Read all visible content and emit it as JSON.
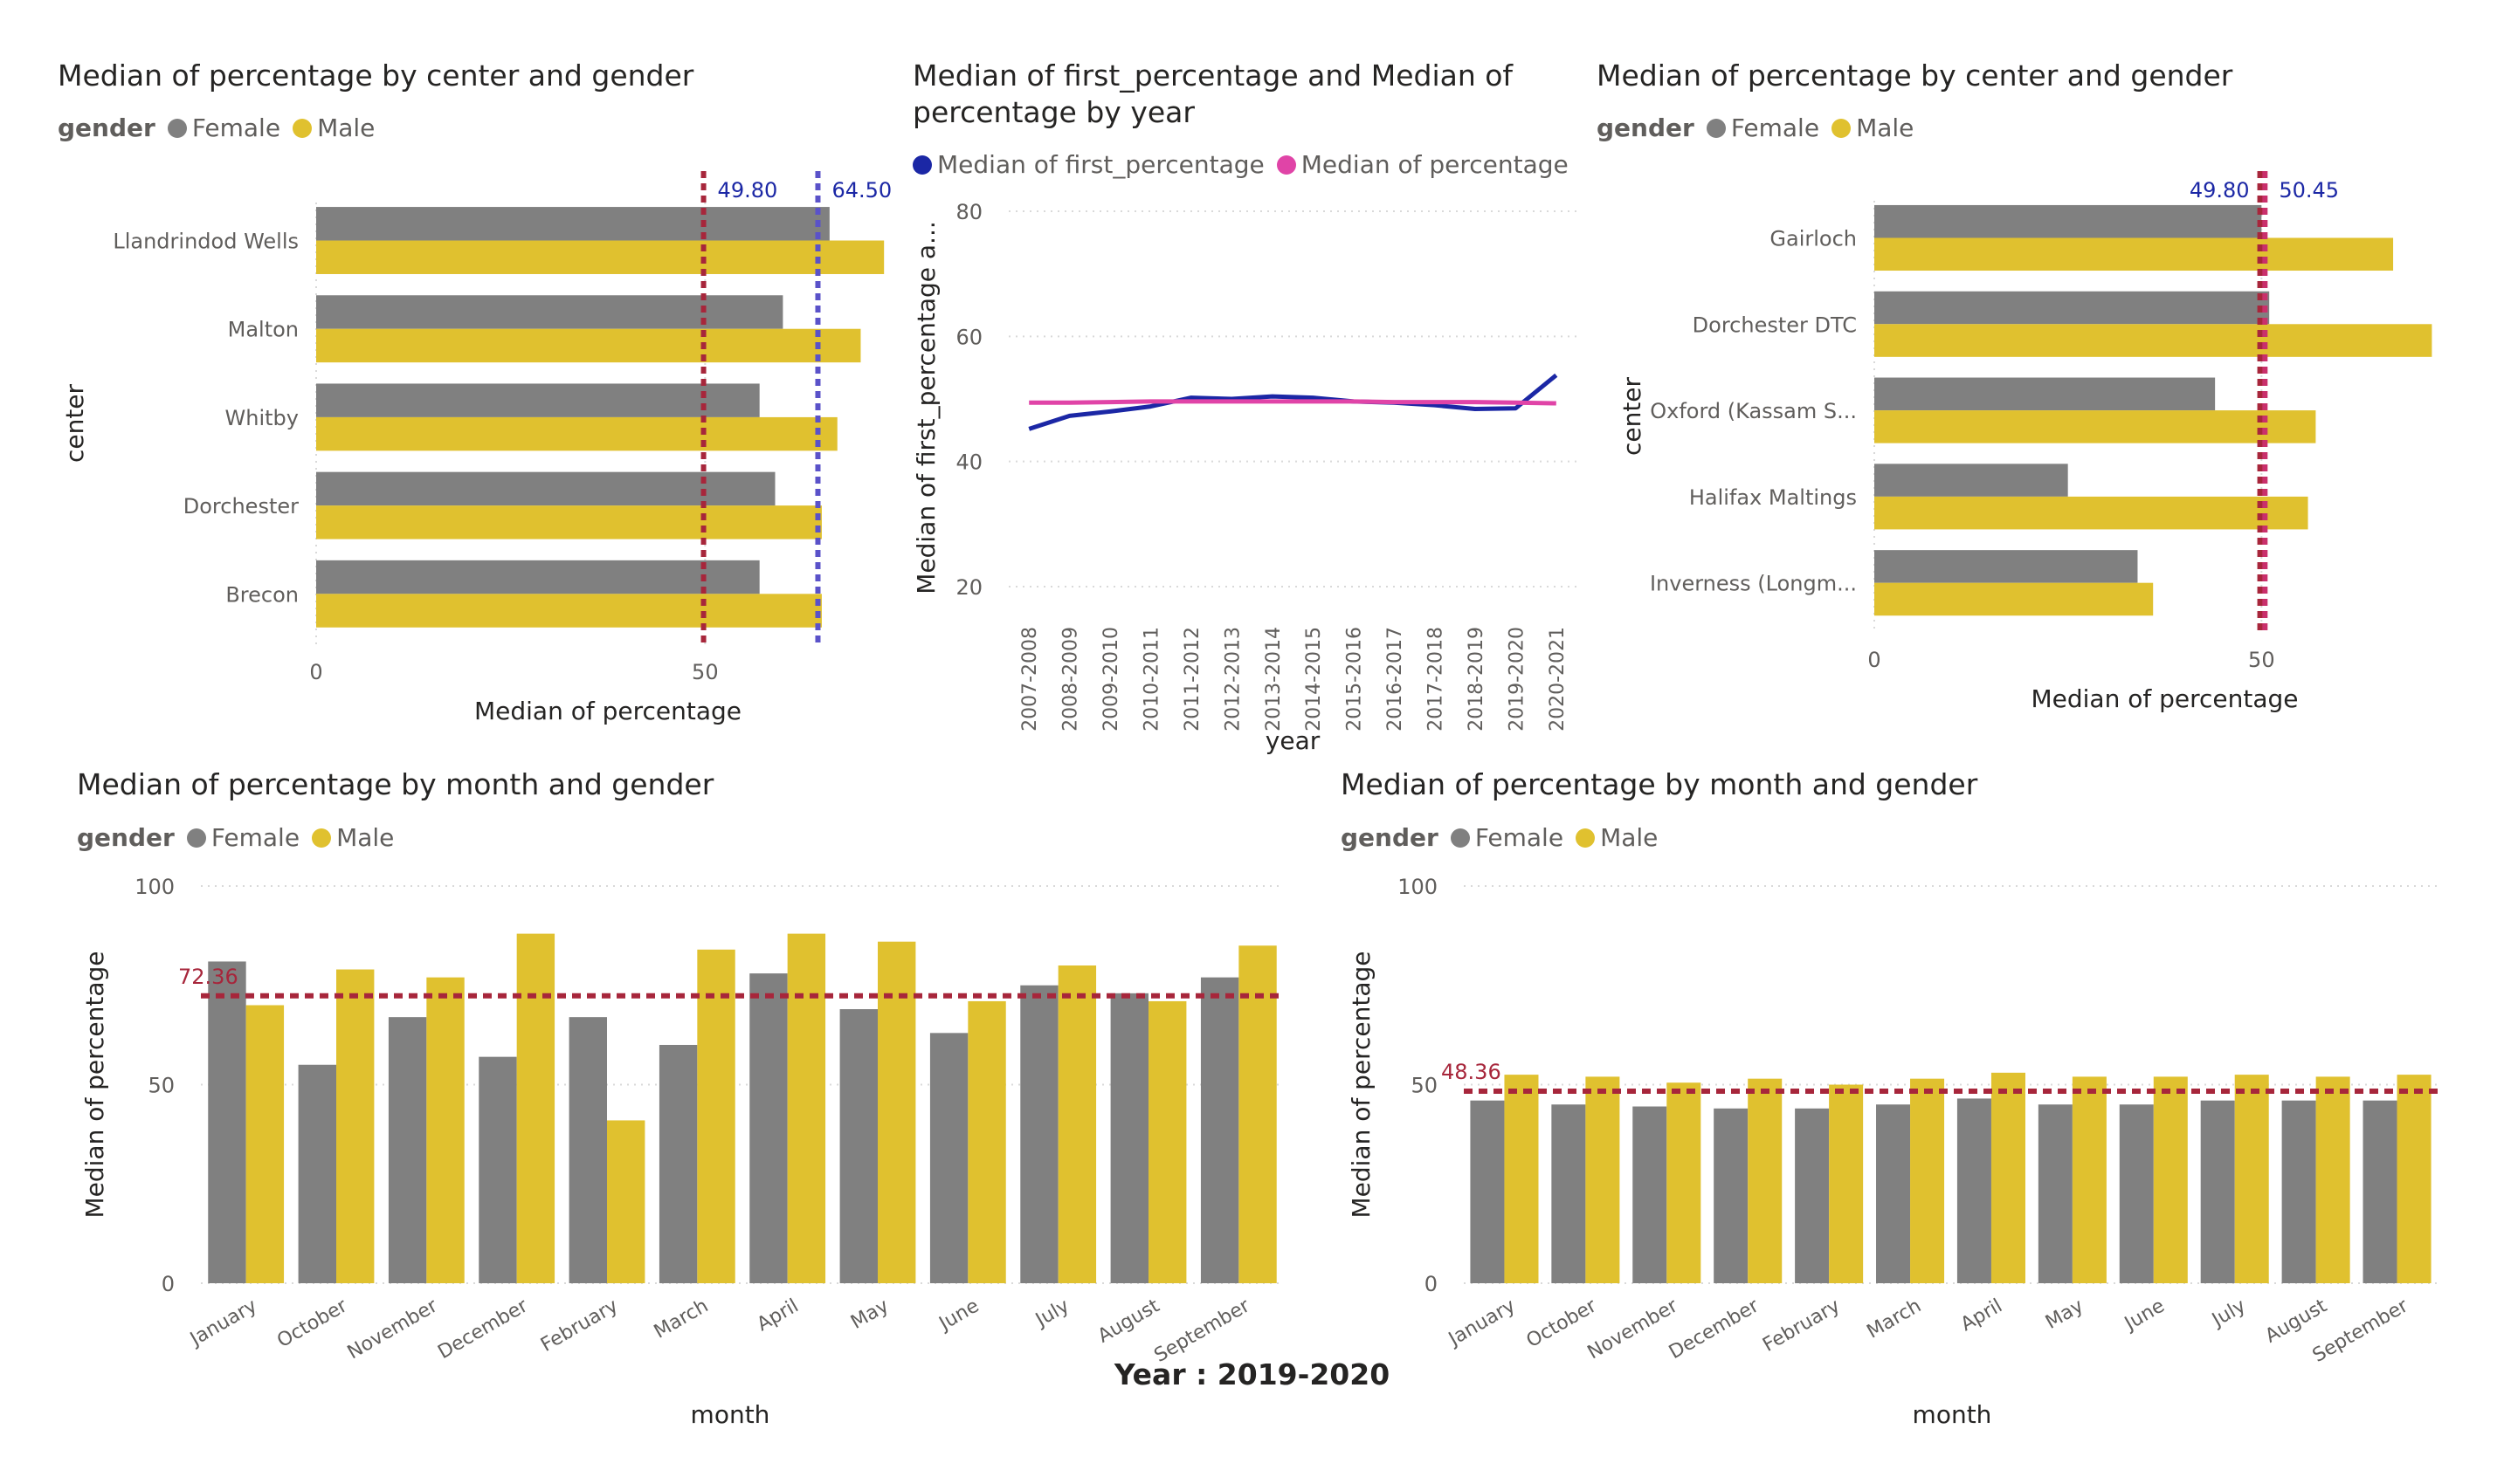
{
  "colors": {
    "female": "#808080",
    "male": "#E0C12F",
    "first_pct_line": "#1b27a5",
    "pct_line": "#e044a7",
    "ref_red": "#a7263b",
    "ref_blue": "#5a52c9",
    "ref_pink": "#c9306b"
  },
  "legend": {
    "title": "gender",
    "female": "Female",
    "male": "Male"
  },
  "footer": {
    "text": "Year : 2019-2020"
  },
  "chart_data": [
    {
      "id": "center_left",
      "type": "bar",
      "orientation": "horizontal",
      "title": "Median of percentage by center and gender",
      "xlabel": "Median of percentage",
      "ylabel": "center",
      "categories": [
        "Llandrindod Wells",
        "Malton",
        "Whitby",
        "Dorchester",
        "Brecon"
      ],
      "series": [
        {
          "name": "Female",
          "values": [
            66,
            60,
            57,
            59,
            57
          ]
        },
        {
          "name": "Male",
          "values": [
            73,
            70,
            67,
            65,
            65
          ]
        }
      ],
      "xlim": [
        0,
        75
      ],
      "xticks": [
        0,
        50
      ],
      "reference_lines": [
        {
          "value": 49.8,
          "label": "49.80",
          "color": "#a7263b"
        },
        {
          "value": 64.5,
          "label": "64.50",
          "color": "#5a52c9"
        }
      ],
      "legend_position": "top-left"
    },
    {
      "id": "year_line",
      "type": "line",
      "title": "Median of first_percentage and Median of percentage by year",
      "title_lines": [
        "Median of first_percentage and Median of",
        "percentage by year"
      ],
      "xlabel": "year",
      "ylabel": "Median of first_percentage a...",
      "x": [
        "2007-2008",
        "2008-2009",
        "2009-2010",
        "2010-2011",
        "2011-2012",
        "2012-2013",
        "2013-2014",
        "2014-2015",
        "2015-2016",
        "2016-2017",
        "2017-2018",
        "2018-2019",
        "2019-2020",
        "2020-2021"
      ],
      "series": [
        {
          "name": "Median of first_percentage",
          "values": [
            45.2,
            47.3,
            48.0,
            48.8,
            50.2,
            50.0,
            50.4,
            50.2,
            49.6,
            49.4,
            49.0,
            48.4,
            48.5,
            53.8
          ]
        },
        {
          "name": "Median of percentage",
          "values": [
            49.4,
            49.4,
            49.5,
            49.6,
            49.6,
            49.6,
            49.6,
            49.6,
            49.6,
            49.5,
            49.5,
            49.5,
            49.4,
            49.3
          ]
        }
      ],
      "ylim": [
        20,
        80
      ],
      "yticks": [
        20,
        40,
        60,
        80
      ],
      "grid": true,
      "legend_position": "top"
    },
    {
      "id": "center_right",
      "type": "bar",
      "orientation": "horizontal",
      "title": "Median of percentage by center and gender",
      "xlabel": "Median of percentage",
      "ylabel": "center",
      "categories": [
        "Gairloch",
        "Dorchester DTC",
        "Oxford (Kassam S...",
        "Halifax Maltings",
        "Inverness (Longm..."
      ],
      "series": [
        {
          "name": "Female",
          "values": [
            50,
            51,
            44,
            25,
            34
          ]
        },
        {
          "name": "Male",
          "values": [
            67,
            72,
            57,
            56,
            36
          ]
        }
      ],
      "xlim": [
        0,
        75
      ],
      "xticks": [
        0,
        50
      ],
      "reference_lines": [
        {
          "value": 49.8,
          "label": "49.80",
          "color": "#a7263b"
        },
        {
          "value": 50.45,
          "label": "50.45",
          "color": "#c9306b"
        }
      ],
      "legend_position": "top-left"
    },
    {
      "id": "month_left",
      "type": "bar",
      "orientation": "vertical",
      "title": "Median of percentage by month and gender",
      "xlabel": "month",
      "ylabel": "Median of percentage",
      "categories": [
        "January",
        "October",
        "November",
        "December",
        "February",
        "March",
        "April",
        "May",
        "June",
        "July",
        "August",
        "September"
      ],
      "series": [
        {
          "name": "Female",
          "values": [
            81,
            55,
            67,
            57,
            67,
            60,
            78,
            69,
            63,
            75,
            73,
            77
          ]
        },
        {
          "name": "Male",
          "values": [
            70,
            79,
            77,
            88,
            41,
            84,
            88,
            86,
            71,
            80,
            71,
            85
          ]
        }
      ],
      "ylim": [
        0,
        100
      ],
      "yticks": [
        0,
        50,
        100
      ],
      "reference_lines": [
        {
          "value": 72.36,
          "label": "72.36",
          "color": "#a7263b"
        }
      ],
      "grid": true,
      "legend_position": "top-left"
    },
    {
      "id": "month_right",
      "type": "bar",
      "orientation": "vertical",
      "title": "Median of percentage by month and gender",
      "xlabel": "month",
      "ylabel": "Median of percentage",
      "categories": [
        "January",
        "October",
        "November",
        "December",
        "February",
        "March",
        "April",
        "May",
        "June",
        "July",
        "August",
        "September"
      ],
      "series": [
        {
          "name": "Female",
          "values": [
            46,
            45,
            44.5,
            44,
            44,
            45,
            46.5,
            45,
            45,
            46,
            46,
            46
          ]
        },
        {
          "name": "Male",
          "values": [
            52.5,
            52,
            50.5,
            51.5,
            50,
            51.5,
            53,
            52,
            52,
            52.5,
            52,
            52.5
          ]
        }
      ],
      "ylim": [
        0,
        100
      ],
      "yticks": [
        0,
        50,
        100
      ],
      "reference_lines": [
        {
          "value": 48.36,
          "label": "48.36",
          "color": "#a7263b"
        }
      ],
      "grid": true,
      "legend_position": "top-left"
    }
  ]
}
